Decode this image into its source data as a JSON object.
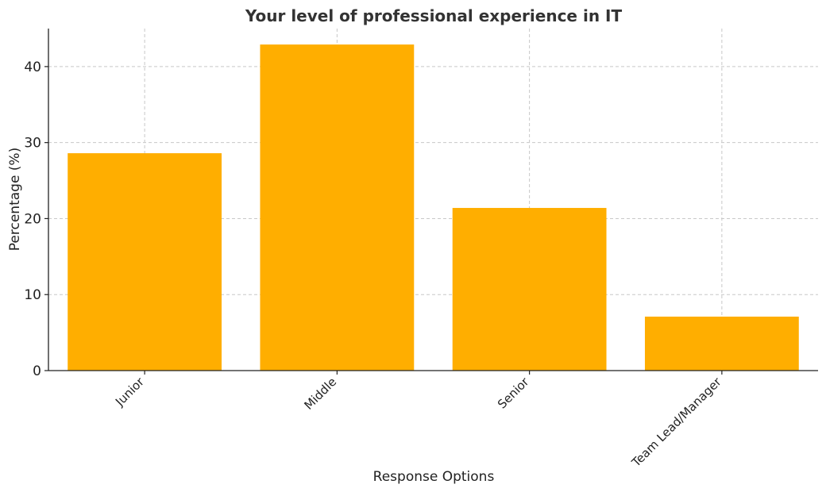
{
  "chart_data": {
    "type": "bar",
    "title": "Your level of professional experience in IT",
    "xlabel": "Response Options",
    "ylabel": "Percentage (%)",
    "categories": [
      "Junior",
      "Middle",
      "Senior",
      "Team Lead/Manager"
    ],
    "values": [
      28.6,
      42.9,
      21.4,
      7.1
    ],
    "ylim": [
      0,
      45
    ],
    "yticks": [
      0,
      10,
      20,
      30,
      40
    ],
    "grid": true,
    "bar_color": "#FFAE00"
  }
}
